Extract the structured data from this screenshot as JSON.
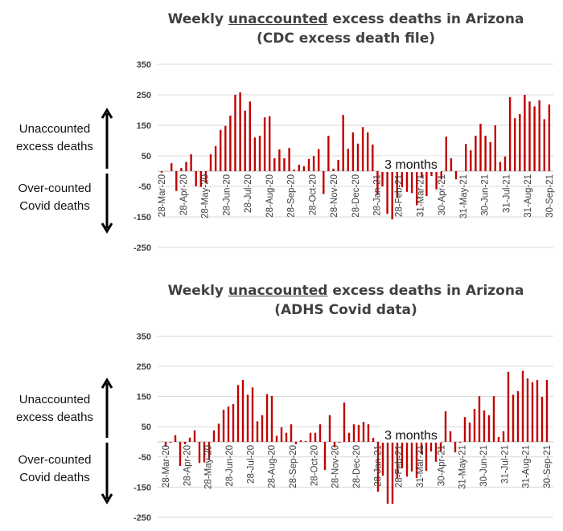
{
  "chart_data": [
    {
      "type": "bar",
      "title_prefix": "Weekly ",
      "title_underlined": "unaccounted",
      "title_suffix": " excess deaths in Arizona",
      "subtitle": "(CDC excess death file)",
      "xlabel": "",
      "ylabel": "",
      "ylim": [
        -250,
        350
      ],
      "yticks": [
        "350",
        "250",
        "150",
        "50",
        "-50",
        "-150",
        "-250"
      ],
      "ytick_values": [
        350,
        250,
        150,
        50,
        -50,
        -150,
        -250
      ],
      "xtick_labels": [
        "28-Mar-20",
        "28-Apr-20",
        "28-May-20",
        "28-Jun-20",
        "28-Jul-20",
        "28-Aug-20",
        "28-Sep-20",
        "28-Oct-20",
        "28-Nov-20",
        "28-Dec-20",
        "28-Jan-21",
        "28-Feb-21",
        "31-Mar-21",
        "30-Apr-21",
        "31-May-21",
        "30-Jun-21",
        "31-Jul-21",
        "31-Aug-21",
        "30-Sep-21"
      ],
      "grid": true,
      "bar_color": "#c00000",
      "annotation": "3 months",
      "series": [
        {
          "name": "Unaccounted excess deaths (CDC)",
          "values": [
            -5,
            0,
            26,
            -65,
            10,
            30,
            55,
            -50,
            -52,
            -40,
            55,
            82,
            135,
            148,
            182,
            250,
            258,
            198,
            228,
            110,
            116,
            176,
            180,
            42,
            71,
            42,
            76,
            5,
            21,
            16,
            40,
            50,
            72,
            -75,
            116,
            8,
            37,
            184,
            73,
            127,
            90,
            144,
            127,
            87,
            -78,
            -50,
            -140,
            -158,
            -88,
            -53,
            -68,
            -72,
            -112,
            -23,
            -82,
            -16,
            -60,
            -27,
            113,
            42,
            -27,
            0,
            89,
            68,
            116,
            155,
            116,
            95,
            150,
            30,
            48,
            242,
            173,
            187,
            250,
            228,
            212,
            232,
            170,
            218
          ]
        }
      ]
    },
    {
      "type": "bar",
      "title_prefix": "Weekly ",
      "title_underlined": "unaccounted",
      "title_suffix": " excess deaths in Arizona",
      "subtitle": "(ADHS Covid data)",
      "xlabel": "",
      "ylabel": "",
      "ylim": [
        -250,
        350
      ],
      "yticks": [
        "350",
        "250",
        "150",
        "50",
        "-50",
        "-150",
        "-250"
      ],
      "ytick_values": [
        350,
        250,
        150,
        50,
        -50,
        -150,
        -250
      ],
      "xtick_labels": [
        "28-Mar-20",
        "28-Apr-20",
        "28-May-20",
        "28-Jun-20",
        "28-Jul-20",
        "28-Aug-20",
        "28-Sep-20",
        "28-Oct-20",
        "28-Nov-20",
        "28-Dec-20",
        "28-Jan-21",
        "28-Feb-21",
        "31-Mar-21",
        "30-Apr-21",
        "31-May-21",
        "30-Jun-21",
        "31-Jul-21",
        "31-Aug-21",
        "30-Sep-21"
      ],
      "grid": true,
      "bar_color": "#c00000",
      "annotation": "3 months",
      "series": [
        {
          "name": "Unaccounted excess deaths (ADHS)",
          "values": [
            -16,
            -3,
            22,
            -80,
            -8,
            14,
            38,
            -70,
            -68,
            -58,
            38,
            60,
            106,
            117,
            125,
            188,
            205,
            156,
            180,
            68,
            88,
            158,
            152,
            20,
            48,
            30,
            58,
            -8,
            5,
            3,
            30,
            30,
            58,
            -93,
            88,
            -18,
            -3,
            130,
            30,
            58,
            56,
            66,
            58,
            13,
            -165,
            -112,
            -205,
            -205,
            -120,
            -88,
            -115,
            -98,
            -120,
            -40,
            -96,
            -32,
            -66,
            -32,
            101,
            35,
            -35,
            -3,
            82,
            64,
            109,
            151,
            104,
            88,
            151,
            16,
            35,
            232,
            156,
            168,
            235,
            210,
            197,
            205,
            149,
            205
          ]
        }
      ]
    }
  ],
  "side_labels": {
    "positive": [
      "Unaccounted",
      "excess deaths"
    ],
    "negative": [
      "Over-counted",
      "Covid deaths"
    ]
  }
}
